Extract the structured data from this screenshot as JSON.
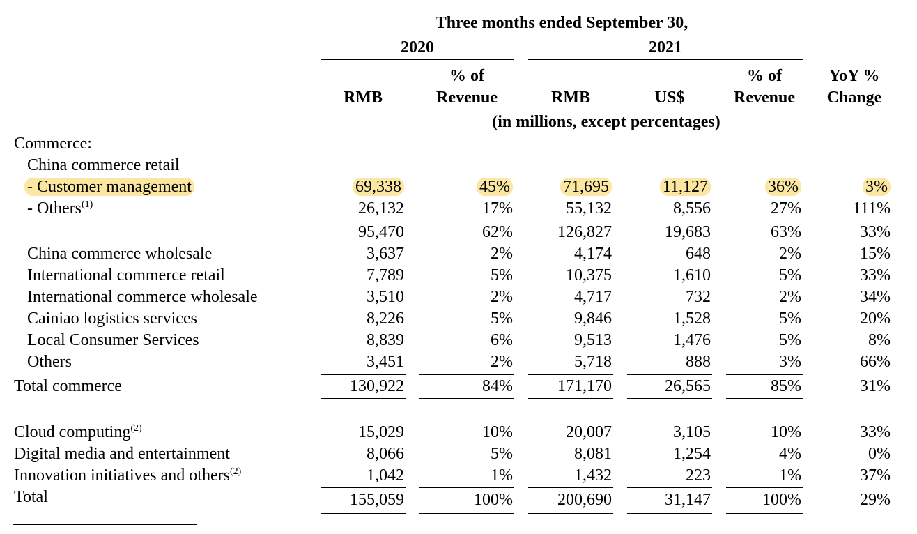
{
  "header": {
    "period": "Three months ended September 30,",
    "year_2020": "2020",
    "year_2021": "2021",
    "col_rmb_2020": "RMB",
    "col_pct_2020_line1": "% of",
    "col_pct_2020_line2": "Revenue",
    "col_rmb_2021": "RMB",
    "col_usd_2021": "US$",
    "col_pct_2021_line1": "% of",
    "col_pct_2021_line2": "Revenue",
    "col_yoy_line1": "YoY %",
    "col_yoy_line2": "Change",
    "units_note": "(in millions, except percentages)"
  },
  "rows": [
    {
      "label": "Commerce:",
      "values": [
        "",
        "",
        "",
        "",
        "",
        ""
      ]
    },
    {
      "label": "China commerce retail",
      "values": [
        "",
        "",
        "",
        "",
        "",
        ""
      ]
    },
    {
      "label": "- Customer management",
      "highlighted": true,
      "values": [
        "69,338",
        "45%",
        "71,695",
        "11,127",
        "36%",
        "3%"
      ]
    },
    {
      "label": "- Others",
      "footnote": "(1)",
      "values": [
        "26,132",
        "17%",
        "55,132",
        "8,556",
        "27%",
        "111%"
      ]
    },
    {
      "label": "",
      "values": [
        "95,470",
        "62%",
        "126,827",
        "19,683",
        "63%",
        "33%"
      ]
    },
    {
      "label": "China commerce wholesale",
      "values": [
        "3,637",
        "2%",
        "4,174",
        "648",
        "2%",
        "15%"
      ]
    },
    {
      "label": "International commerce retail",
      "values": [
        "7,789",
        "5%",
        "10,375",
        "1,610",
        "5%",
        "33%"
      ]
    },
    {
      "label": "International commerce wholesale",
      "values": [
        "3,510",
        "2%",
        "4,717",
        "732",
        "2%",
        "34%"
      ]
    },
    {
      "label": "Cainiao logistics services",
      "values": [
        "8,226",
        "5%",
        "9,846",
        "1,528",
        "5%",
        "20%"
      ]
    },
    {
      "label": "Local Consumer Services",
      "values": [
        "8,839",
        "6%",
        "9,513",
        "1,476",
        "5%",
        "8%"
      ]
    },
    {
      "label": "Others",
      "values": [
        "3,451",
        "2%",
        "5,718",
        "888",
        "3%",
        "66%"
      ]
    },
    {
      "label": "Total commerce",
      "values": [
        "130,922",
        "84%",
        "171,170",
        "26,565",
        "85%",
        "31%"
      ]
    },
    {
      "label": "Cloud computing",
      "footnote": "(2)",
      "values": [
        "15,029",
        "10%",
        "20,007",
        "3,105",
        "10%",
        "33%"
      ]
    },
    {
      "label": "Digital media and entertainment",
      "values": [
        "8,066",
        "5%",
        "8,081",
        "1,254",
        "4%",
        "0%"
      ]
    },
    {
      "label": "Innovation initiatives and others",
      "footnote": "(2)",
      "values": [
        "1,042",
        "1%",
        "1,432",
        "223",
        "1%",
        "37%"
      ]
    },
    {
      "label": "Total",
      "values": [
        "155,059",
        "100%",
        "200,690",
        "31,147",
        "100%",
        "29%"
      ]
    }
  ]
}
